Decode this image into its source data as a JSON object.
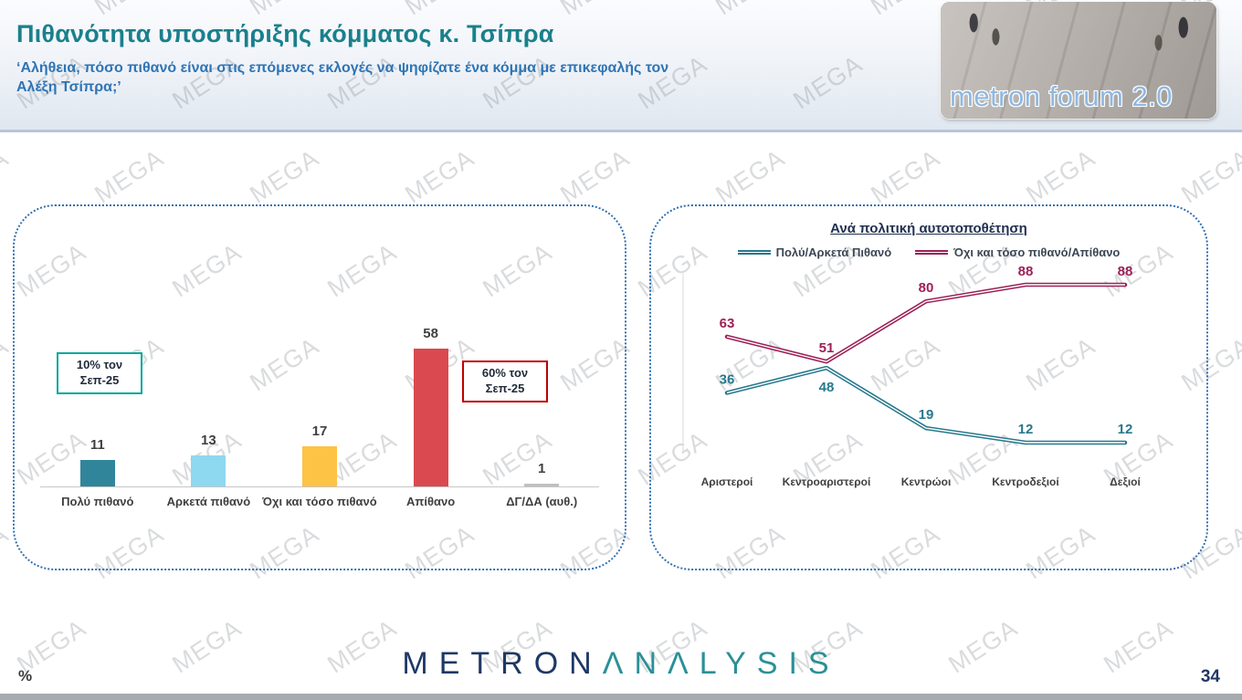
{
  "header": {
    "title": "Πιθανότητα υποστήριξης κόμματος κ. Τσίπρα",
    "subtitle": "‘Αλήθεια, πόσο πιθανό είναι στις επόμενες εκλογές να ψηφίζατε ένα κόμμα με επικεφαλής τον Αλέξη Τσίπρα;’",
    "logo_text": "metron forum 2.0"
  },
  "watermark": {
    "text": "MEGA"
  },
  "chart_data": [
    {
      "type": "bar",
      "categories": [
        "Πολύ πιθανό",
        "Αρκετά πιθανό",
        "Όχι και τόσο πιθανό",
        "Απίθανο",
        "ΔΓ/ΔΑ (αυθ.)"
      ],
      "values": [
        11,
        13,
        17,
        58,
        1
      ],
      "bar_colors": [
        "#31859b",
        "#8ed8f0",
        "#fdc345",
        "#d9494f",
        "#bfbfbf"
      ],
      "ylim": [
        0,
        70
      ],
      "annotations": [
        {
          "text": "10% τον Σεπ-25",
          "border_color": "#00a79b"
        },
        {
          "text": "60% τον Σεπ-25",
          "border_color": "#c00000"
        }
      ]
    },
    {
      "type": "line",
      "title": "Ανά πολιτική αυτοτοποθέτηση",
      "categories": [
        "Αριστεροί",
        "Κεντροαριστεροί",
        "Κεντρώοι",
        "Κεντροδεξιοί",
        "Δεξιοί"
      ],
      "series": [
        {
          "name": "Πολύ/Αρκετά Πιθανό",
          "color": "#26788c",
          "values": [
            36,
            48,
            19,
            12,
            12
          ]
        },
        {
          "name": "Όχι και τόσο πιθανό/Απίθανο",
          "color": "#9c2057",
          "values": [
            63,
            51,
            80,
            88,
            88
          ]
        }
      ],
      "ylim": [
        0,
        100
      ],
      "legend_position": "top"
    }
  ],
  "footer": {
    "percent_label": "%",
    "brand_primary": "METRON",
    "brand_secondary": "ΛNΛLYSIS",
    "page_number": "34"
  }
}
